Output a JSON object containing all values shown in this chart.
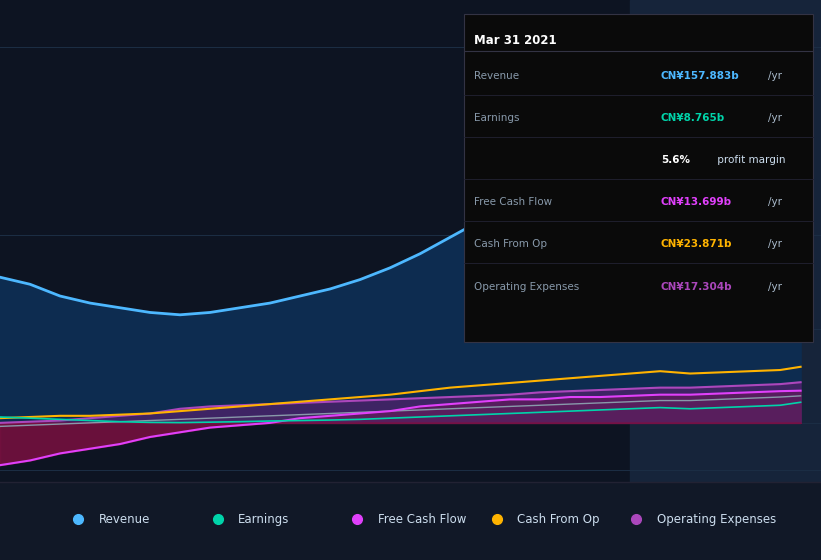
{
  "background_color": "#0d1422",
  "plot_bg_color": "#0d1422",
  "grid_color": "#1c2e45",
  "ylim": [
    -25,
    180
  ],
  "y_zero": 0,
  "y_160": 160,
  "y_neg20": -20,
  "xlim": [
    2014.58,
    2021.42
  ],
  "xticks": [
    2015,
    2016,
    2017,
    2018,
    2019,
    2020,
    2021
  ],
  "highlight_x_start": 2019.83,
  "highlight_color": "#16243a",
  "series": {
    "revenue": {
      "color": "#4db8ff",
      "fill_alpha": 0.85,
      "x": [
        2014.58,
        2014.83,
        2015.08,
        2015.33,
        2015.58,
        2015.83,
        2016.08,
        2016.33,
        2016.58,
        2016.83,
        2017.08,
        2017.33,
        2017.58,
        2017.83,
        2018.08,
        2018.33,
        2018.58,
        2018.83,
        2019.08,
        2019.33,
        2019.58,
        2019.83,
        2020.08,
        2020.33,
        2020.58,
        2020.83,
        2021.08,
        2021.25
      ],
      "y": [
        62,
        59,
        54,
        51,
        49,
        47,
        46,
        47,
        49,
        51,
        54,
        57,
        61,
        66,
        72,
        79,
        86,
        93,
        100,
        108,
        115,
        121,
        126,
        120,
        117,
        123,
        138,
        158
      ]
    },
    "earnings": {
      "color": "#00d4aa",
      "x": [
        2014.58,
        2014.83,
        2015.08,
        2015.33,
        2015.58,
        2015.83,
        2016.08,
        2016.33,
        2016.58,
        2016.83,
        2017.08,
        2017.33,
        2017.58,
        2017.83,
        2018.08,
        2018.33,
        2018.58,
        2018.83,
        2019.08,
        2019.33,
        2019.58,
        2019.83,
        2020.08,
        2020.33,
        2020.58,
        2020.83,
        2021.08,
        2021.25
      ],
      "y": [
        2.5,
        2.0,
        1.5,
        1.0,
        0.5,
        0.2,
        0.1,
        0.3,
        0.5,
        0.8,
        1.0,
        1.2,
        1.5,
        2.0,
        2.5,
        3.0,
        3.5,
        4.0,
        4.5,
        5.0,
        5.5,
        6.0,
        6.5,
        6.0,
        6.5,
        7.0,
        7.5,
        8.765
      ]
    },
    "free_cash_flow": {
      "color": "#e040fb",
      "x": [
        2014.58,
        2014.83,
        2015.08,
        2015.33,
        2015.58,
        2015.83,
        2016.08,
        2016.33,
        2016.58,
        2016.83,
        2017.08,
        2017.33,
        2017.58,
        2017.83,
        2018.08,
        2018.33,
        2018.58,
        2018.83,
        2019.08,
        2019.33,
        2019.58,
        2019.83,
        2020.08,
        2020.33,
        2020.58,
        2020.83,
        2021.08,
        2021.25
      ],
      "y": [
        -18,
        -16,
        -13,
        -11,
        -9,
        -6,
        -4,
        -2,
        -1,
        0,
        2,
        3,
        4,
        5,
        7,
        8,
        9,
        10,
        10,
        11,
        11,
        11.5,
        12,
        12,
        12.5,
        13,
        13.5,
        13.699
      ]
    },
    "cash_from_op": {
      "color": "#ffb300",
      "x": [
        2014.58,
        2014.83,
        2015.08,
        2015.33,
        2015.58,
        2015.83,
        2016.08,
        2016.33,
        2016.58,
        2016.83,
        2017.08,
        2017.33,
        2017.58,
        2017.83,
        2018.08,
        2018.33,
        2018.58,
        2018.83,
        2019.08,
        2019.33,
        2019.58,
        2019.83,
        2020.08,
        2020.33,
        2020.58,
        2020.83,
        2021.08,
        2021.25
      ],
      "y": [
        2,
        2.5,
        3,
        3,
        3.5,
        4,
        5,
        6,
        7,
        8,
        9,
        10,
        11,
        12,
        13.5,
        15,
        16,
        17,
        18,
        19,
        20,
        21,
        22,
        21,
        21.5,
        22,
        22.5,
        23.871
      ]
    },
    "operating_expenses": {
      "color": "#ab47bc",
      "x": [
        2014.58,
        2014.83,
        2015.08,
        2015.33,
        2015.58,
        2015.83,
        2016.08,
        2016.33,
        2016.58,
        2016.83,
        2017.08,
        2017.33,
        2017.58,
        2017.83,
        2018.08,
        2018.33,
        2018.58,
        2018.83,
        2019.08,
        2019.33,
        2019.58,
        2019.83,
        2020.08,
        2020.33,
        2020.58,
        2020.83,
        2021.08,
        2021.25
      ],
      "y": [
        0,
        0.5,
        1,
        2,
        3,
        4,
        6,
        7,
        7.5,
        8,
        8.5,
        9,
        9.5,
        10,
        10.5,
        11,
        11.5,
        12,
        13,
        13.5,
        14,
        14.5,
        15,
        15,
        15.5,
        16,
        16.5,
        17.304
      ]
    },
    "gray_line": {
      "color": "#8899aa",
      "x": [
        2014.58,
        2014.83,
        2015.08,
        2015.33,
        2015.58,
        2015.83,
        2016.08,
        2016.33,
        2016.58,
        2016.83,
        2017.08,
        2017.33,
        2017.58,
        2017.83,
        2018.08,
        2018.33,
        2018.58,
        2018.83,
        2019.08,
        2019.33,
        2019.58,
        2019.83,
        2020.08,
        2020.33,
        2020.58,
        2020.83,
        2021.08,
        2021.25
      ],
      "y": [
        -1.5,
        -1,
        -0.5,
        0,
        0.5,
        1,
        1.5,
        2,
        2.5,
        3,
        3.5,
        4,
        4.5,
        5,
        5.5,
        6,
        6.5,
        7,
        7.5,
        8,
        8.5,
        9,
        9.5,
        9.5,
        10,
        10.5,
        11,
        11.5
      ]
    }
  },
  "infobox": {
    "title": "Mar 31 2021",
    "rows": [
      {
        "label": "Revenue",
        "value": "CN¥157.883b",
        "unit": "/yr",
        "value_color": "#4db8ff",
        "label_color": "#8899aa"
      },
      {
        "label": "Earnings",
        "value": "CN¥8.765b",
        "unit": "/yr",
        "value_color": "#00d4aa",
        "label_color": "#8899aa"
      },
      {
        "label": "",
        "value": "5.6%",
        "unit": " profit margin",
        "value_color": "#ffffff",
        "label_color": "#ffffff",
        "bold_pct": true
      },
      {
        "label": "Free Cash Flow",
        "value": "CN¥13.699b",
        "unit": "/yr",
        "value_color": "#e040fb",
        "label_color": "#8899aa"
      },
      {
        "label": "Cash From Op",
        "value": "CN¥23.871b",
        "unit": "/yr",
        "value_color": "#ffb300",
        "label_color": "#8899aa"
      },
      {
        "label": "Operating Expenses",
        "value": "CN¥17.304b",
        "unit": "/yr",
        "value_color": "#ab47bc",
        "label_color": "#8899aa"
      }
    ]
  },
  "legend_items": [
    {
      "label": "Revenue",
      "color": "#4db8ff"
    },
    {
      "label": "Earnings",
      "color": "#00d4aa"
    },
    {
      "label": "Free Cash Flow",
      "color": "#e040fb"
    },
    {
      "label": "Cash From Op",
      "color": "#ffb300"
    },
    {
      "label": "Operating Expenses",
      "color": "#ab47bc"
    }
  ]
}
